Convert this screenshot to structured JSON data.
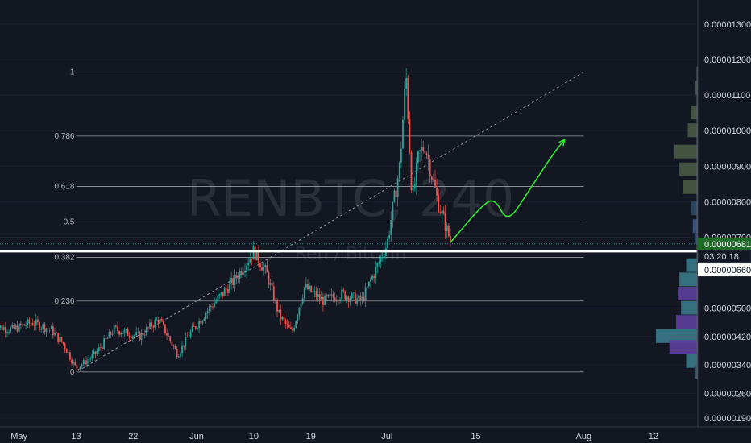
{
  "watermark": {
    "symbol": "RENBTC, 240",
    "name": "Ren / Bitcoin"
  },
  "colors": {
    "background": "#131722",
    "up": "#26a69a",
    "down": "#ef5350",
    "fib": "#b2b5be",
    "arrow": "#2ee62e",
    "trend": "#9598a1",
    "price_line": "#ffffff",
    "tag_green": "#1e6b28"
  },
  "chart_data": {
    "type": "candlestick",
    "title": "",
    "y_axis": {
      "ticks": [
        "0.00001300",
        "0.00001200",
        "0.00001100",
        "0.00001000",
        "0.00000900",
        "0.00000800",
        "0.00000700",
        "0.00000660",
        "0.00000500",
        "0.00000420",
        "0.00000340",
        "0.00000260",
        "0.00000190"
      ],
      "range": [
        1.7e-06,
        1.35e-05
      ]
    },
    "x_axis": {
      "ticks": [
        "May",
        "13",
        "22",
        "Jun",
        "10",
        "19",
        "Jul",
        "15",
        "Aug",
        "12"
      ],
      "range": [
        "2020-05-01",
        "2020-08-19"
      ]
    },
    "fibonacci": {
      "levels": [
        {
          "label": "1",
          "value": 1.165e-05
        },
        {
          "label": "0.786",
          "value": 9.85e-06
        },
        {
          "label": "0.618",
          "value": 8.43e-06
        },
        {
          "label": "0.5",
          "value": 7.43e-06
        },
        {
          "label": "0.382",
          "value": 6.43e-06
        },
        {
          "label": "0.236",
          "value": 5.2e-06
        },
        {
          "label": "0",
          "value": 3.2e-06
        }
      ],
      "range": [
        "2020-05-13",
        "2020-08-01"
      ]
    },
    "trend_line": [
      {
        "date": "2020-05-14",
        "value": 3.3e-06
      },
      {
        "date": "2020-08-01",
        "value": 1.165e-05
      }
    ],
    "price_path": [
      {
        "date": "2020-04-30",
        "value": 4.5e-06
      },
      {
        "date": "2020-05-03",
        "value": 4.4e-06
      },
      {
        "date": "2020-05-06",
        "value": 4.6e-06
      },
      {
        "date": "2020-05-09",
        "value": 4.4e-06
      },
      {
        "date": "2020-05-11",
        "value": 4e-06
      },
      {
        "date": "2020-05-13",
        "value": 3.3e-06
      },
      {
        "date": "2020-05-16",
        "value": 3.7e-06
      },
      {
        "date": "2020-05-19",
        "value": 4.4e-06
      },
      {
        "date": "2020-05-23",
        "value": 4.2e-06
      },
      {
        "date": "2020-05-26",
        "value": 4.7e-06
      },
      {
        "date": "2020-05-29",
        "value": 3.7e-06
      },
      {
        "date": "2020-05-31",
        "value": 4.3e-06
      },
      {
        "date": "2020-06-03",
        "value": 5e-06
      },
      {
        "date": "2020-06-07",
        "value": 5.8e-06
      },
      {
        "date": "2020-06-10",
        "value": 6.6e-06
      },
      {
        "date": "2020-06-12",
        "value": 6e-06
      },
      {
        "date": "2020-06-14",
        "value": 4.8e-06
      },
      {
        "date": "2020-06-16",
        "value": 4.3e-06
      },
      {
        "date": "2020-06-18",
        "value": 5.6e-06
      },
      {
        "date": "2020-06-21",
        "value": 5.2e-06
      },
      {
        "date": "2020-06-24",
        "value": 5.4e-06
      },
      {
        "date": "2020-06-27",
        "value": 5.2e-06
      },
      {
        "date": "2020-06-29",
        "value": 6e-06
      },
      {
        "date": "2020-07-01",
        "value": 6.8e-06
      },
      {
        "date": "2020-07-03",
        "value": 9e-06
      },
      {
        "date": "2020-07-04",
        "value": 1.16e-05
      },
      {
        "date": "2020-07-05",
        "value": 8e-06
      },
      {
        "date": "2020-07-06",
        "value": 9.3e-06
      },
      {
        "date": "2020-07-07",
        "value": 9.6e-06
      },
      {
        "date": "2020-07-09",
        "value": 8e-06
      },
      {
        "date": "2020-07-11",
        "value": 6.9e-06
      }
    ],
    "projection": [
      {
        "date": "2020-07-11",
        "value": 6.85e-06
      },
      {
        "date": "2020-07-16",
        "value": 7.9e-06
      },
      {
        "date": "2020-07-18",
        "value": 8.1e-06
      },
      {
        "date": "2020-07-20",
        "value": 7.4e-06
      },
      {
        "date": "2020-07-23",
        "value": 8.2e-06
      },
      {
        "date": "2020-07-27",
        "value": 9.3e-06
      },
      {
        "date": "2020-07-29",
        "value": 9.75e-06
      }
    ],
    "current_price": {
      "value": 6.81e-06,
      "label": "0.00000681",
      "countdown": "03:20:18"
    },
    "horizontal_line": {
      "value": 6.6e-06,
      "label": "0.00000660"
    },
    "volume_profile": [
      {
        "price": 1.12e-05,
        "volume": 3,
        "color": "#3f5a4a"
      },
      {
        "price": 1.05e-05,
        "volume": 8,
        "color": "#4a5a44"
      },
      {
        "price": 1e-05,
        "volume": 12,
        "color": "#4a5a44"
      },
      {
        "price": 9.4e-06,
        "volume": 28,
        "color": "#4a5a44"
      },
      {
        "price": 8.9e-06,
        "volume": 22,
        "color": "#4a5a44"
      },
      {
        "price": 8.4e-06,
        "volume": 18,
        "color": "#4a5a44"
      },
      {
        "price": 7.8e-06,
        "volume": 8,
        "color": "#2a4a6a"
      },
      {
        "price": 7.3e-06,
        "volume": 6,
        "color": "#3a5a8a"
      },
      {
        "price": 7e-06,
        "volume": 4,
        "color": "#2a4a6a"
      },
      {
        "price": 6.2e-06,
        "volume": 14,
        "color": "#3a7a8a"
      },
      {
        "price": 5.8e-06,
        "volume": 22,
        "color": "#3a7a8a"
      },
      {
        "price": 5.4e-06,
        "volume": 24,
        "color": "#5e3f9e"
      },
      {
        "price": 5e-06,
        "volume": 20,
        "color": "#3a7a8a"
      },
      {
        "price": 4.6e-06,
        "volume": 26,
        "color": "#5e3f9e"
      },
      {
        "price": 4.2e-06,
        "volume": 50,
        "color": "#3a7a8a"
      },
      {
        "price": 3.9e-06,
        "volume": 34,
        "color": "#5e3f9e"
      },
      {
        "price": 3.5e-06,
        "volume": 14,
        "color": "#3a7a8a"
      },
      {
        "price": 3.2e-06,
        "volume": 4,
        "color": "#3a5a6a"
      }
    ]
  }
}
